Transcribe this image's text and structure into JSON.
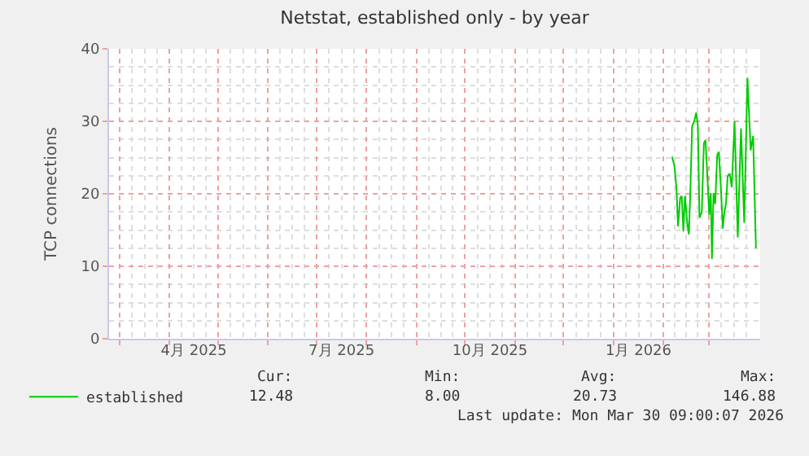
{
  "chart_data": {
    "type": "line",
    "title": "Netstat, established only - by year",
    "ylabel": "TCP connections",
    "x": [
      "2026-02-06T07:00",
      "2026-02-07T17:00",
      "2026-02-09",
      "2026-02-10",
      "2026-02-11T07:00",
      "2026-02-12T07:00",
      "2026-02-13T07:00",
      "2026-02-14T07:00",
      "2026-02-15T17:00",
      "2026-02-16T17:00",
      "2026-02-17T17:00",
      "2026-02-18T17:00",
      "2026-02-20",
      "2026-02-21T07:00",
      "2026-02-22T07:00",
      "2026-02-23T07:00",
      "2026-02-24T17:00",
      "2026-02-26",
      "2026-02-27",
      "2026-02-28",
      "2026-03-01T07:00",
      "2026-03-02T07:00",
      "2026-03-03",
      "2026-03-04",
      "2026-03-05",
      "2026-03-06T07:00",
      "2026-03-07T07:00",
      "2026-03-08T17:00",
      "2026-03-09T17:00",
      "2026-03-10T17:00",
      "2026-03-11T17:00",
      "2026-03-12T17:00",
      "2026-03-14",
      "2026-03-15T07:00",
      "2026-03-17",
      "2026-03-19",
      "2026-03-21",
      "2026-03-23",
      "2026-03-25",
      "2026-03-27",
      "2026-03-28T12:00",
      "2026-03-30T06:00"
    ],
    "series": [
      {
        "name": "established",
        "color": "#00cc00",
        "values": [
          25.1,
          23.9,
          20.9,
          15.5,
          19.4,
          19.7,
          14.8,
          19.7,
          15.9,
          14.4,
          20.9,
          29.3,
          30.0,
          31.2,
          29.3,
          16.7,
          17.5,
          27.0,
          27.4,
          23.2,
          17.1,
          20.1,
          11.0,
          20.1,
          18.6,
          25.4,
          25.8,
          20.1,
          15.2,
          17.5,
          18.6,
          22.4,
          22.8,
          20.9,
          30,
          14,
          29,
          16,
          36,
          26,
          28,
          12.5
        ]
      }
    ],
    "xlim": [
      "2025-02-22T12:00",
      "2026-04-01T21:00"
    ],
    "xticks": [
      {
        "value": "2025-03-01",
        "label": null
      },
      {
        "value": "2025-04-01",
        "label": null
      },
      {
        "value": "2025-04-16",
        "label": "4月 2025"
      },
      {
        "value": "2025-05-01",
        "label": null
      },
      {
        "value": "2025-06-01",
        "label": null
      },
      {
        "value": "2025-07-01",
        "label": null
      },
      {
        "value": "2025-07-16T12:00",
        "label": "7月 2025"
      },
      {
        "value": "2025-08-01",
        "label": null
      },
      {
        "value": "2025-09-01",
        "label": null
      },
      {
        "value": "2025-10-01",
        "label": null
      },
      {
        "value": "2025-10-16T12:00",
        "label": "10月 2025"
      },
      {
        "value": "2025-11-01",
        "label": null
      },
      {
        "value": "2025-12-01",
        "label": null
      },
      {
        "value": "2026-01-01",
        "label": null
      },
      {
        "value": "2026-01-16T12:00",
        "label": "1月 2026"
      },
      {
        "value": "2026-02-01",
        "label": null
      },
      {
        "value": "2026-03-01",
        "label": null
      }
    ],
    "ylim": [
      0,
      40
    ],
    "yticks": [
      0,
      10,
      20,
      30,
      40
    ],
    "grid": true,
    "legend": "bottom",
    "marker": "none",
    "line_style": "solid",
    "annotations": [
      "Cur:",
      "Min:",
      "Avg:",
      "Max:",
      "12.48",
      "8.00",
      "20.73",
      "146.88",
      "Last update: Mon Mar 30 09:00:07 2026"
    ]
  }
}
